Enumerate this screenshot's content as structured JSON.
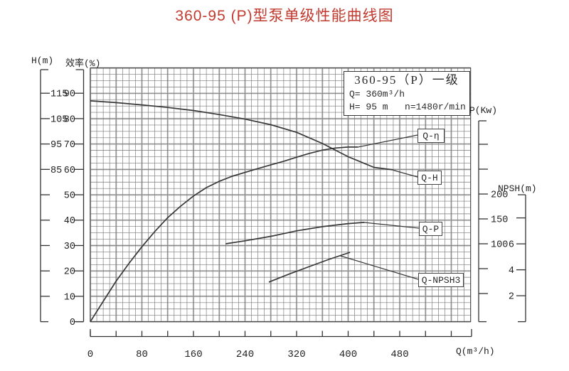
{
  "title": "360-95 (P)型泵单级性能曲线图",
  "colors": {
    "title_red": "#c2392e",
    "ink": "#2b2b2b",
    "grid_minor": "#777777",
    "grid_major": "#bdbdbd"
  },
  "info_box": {
    "model": "360-95（P）一级",
    "flow": "Q= 360m³/h",
    "head_speed": "H= 95 m   n=1480r/min"
  },
  "chart_data": {
    "type": "line",
    "x_axis": {
      "label": "Q(m³/h)",
      "tick_labels": [
        0,
        80,
        160,
        240,
        320,
        400,
        480
      ],
      "minor_tick_step": 40,
      "max_tick": 560
    },
    "axes": {
      "H": {
        "label": "H(m)",
        "labeled_ticks": [
          115,
          105,
          95,
          85
        ],
        "unlabeled_ticks": [
          75,
          65,
          55,
          45,
          35
        ]
      },
      "eff": {
        "label": "效率(%)",
        "labeled_ticks": [
          90,
          80,
          70,
          60,
          50,
          40,
          30,
          20,
          10,
          0
        ],
        "unlabeled_ticks": []
      },
      "P": {
        "label": "P(Kw)",
        "labeled_ticks": [
          200,
          150,
          100
        ],
        "unlabeled_ticks": [
          300,
          250,
          50,
          0
        ]
      },
      "NPSH": {
        "label": "NPSH(m)",
        "labeled_ticks": [
          6,
          4,
          2
        ],
        "unlabeled_ticks": [
          8
        ]
      }
    },
    "series": [
      {
        "name": "Q-η",
        "axis": "eff",
        "points": [
          [
            0,
            0
          ],
          [
            20,
            8
          ],
          [
            40,
            16
          ],
          [
            60,
            23
          ],
          [
            80,
            29.5
          ],
          [
            100,
            35.5
          ],
          [
            120,
            41
          ],
          [
            140,
            45.5
          ],
          [
            160,
            49.5
          ],
          [
            180,
            52.8
          ],
          [
            200,
            55.3
          ],
          [
            220,
            57.3
          ],
          [
            240,
            58.8
          ],
          [
            260,
            60.3
          ],
          [
            280,
            61.8
          ],
          [
            300,
            63.2
          ],
          [
            320,
            64.8
          ],
          [
            340,
            66.3
          ],
          [
            360,
            67.6
          ],
          [
            380,
            68.4
          ],
          [
            400,
            68.8
          ],
          [
            415,
            68.8
          ]
        ]
      },
      {
        "name": "Q-H",
        "axis": "H",
        "points": [
          [
            0,
            112
          ],
          [
            40,
            111.3
          ],
          [
            80,
            110.4
          ],
          [
            120,
            109.4
          ],
          [
            160,
            108.2
          ],
          [
            200,
            106.6
          ],
          [
            240,
            104.8
          ],
          [
            280,
            102.6
          ],
          [
            320,
            99.6
          ],
          [
            360,
            95.2
          ],
          [
            400,
            90
          ],
          [
            440,
            85.8
          ],
          [
            470,
            84.8
          ]
        ]
      },
      {
        "name": "Q-P",
        "axis": "P",
        "points": [
          [
            210,
            100
          ],
          [
            240,
            106
          ],
          [
            280,
            115
          ],
          [
            320,
            126
          ],
          [
            360,
            134.5
          ],
          [
            400,
            140.5
          ],
          [
            425,
            143
          ]
        ]
      },
      {
        "name": "Q-NPSH3",
        "axis": "NPSH",
        "points": [
          [
            277,
            3.05
          ],
          [
            310,
            3.7
          ],
          [
            340,
            4.25
          ],
          [
            370,
            4.8
          ],
          [
            403,
            5.35
          ]
        ]
      }
    ]
  }
}
